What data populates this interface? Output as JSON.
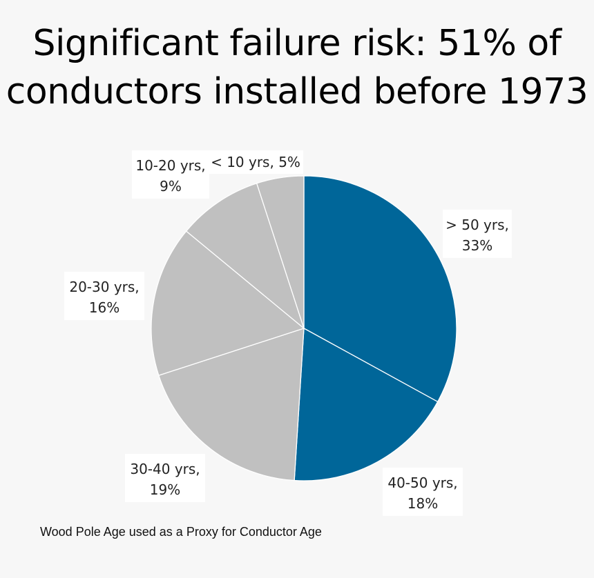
{
  "title_lines": [
    "Significant failure risk: 51% of",
    "conductors installed before 1973"
  ],
  "footnote": "Wood Pole Age used as a Proxy for Conductor Age",
  "chart_data": {
    "type": "pie",
    "title": "Significant failure risk: 51% of conductors installed before 1973",
    "start_angle_deg": 0,
    "direction": "clockwise",
    "slices": [
      {
        "label": "> 50 yrs",
        "value": 33,
        "display": "> 50 yrs, 33%",
        "color": "#006699"
      },
      {
        "label": "40-50 yrs",
        "value": 18,
        "display": "40-50 yrs, 18%",
        "color": "#006699"
      },
      {
        "label": "30-40 yrs",
        "value": 19,
        "display": "30-40 yrs, 19%",
        "color": "#c0c0c0"
      },
      {
        "label": "20-30 yrs",
        "value": 16,
        "display": "20-30 yrs, 16%",
        "color": "#c0c0c0"
      },
      {
        "label": "10-20 yrs",
        "value": 9,
        "display": "10-20 yrs, 9%",
        "color": "#c0c0c0"
      },
      {
        "label": "< 10 yrs",
        "value": 5,
        "display": "< 10 yrs, 5%",
        "color": "#c0c0c0"
      }
    ],
    "slice_border_color": "#ffffff",
    "legend": "none"
  }
}
